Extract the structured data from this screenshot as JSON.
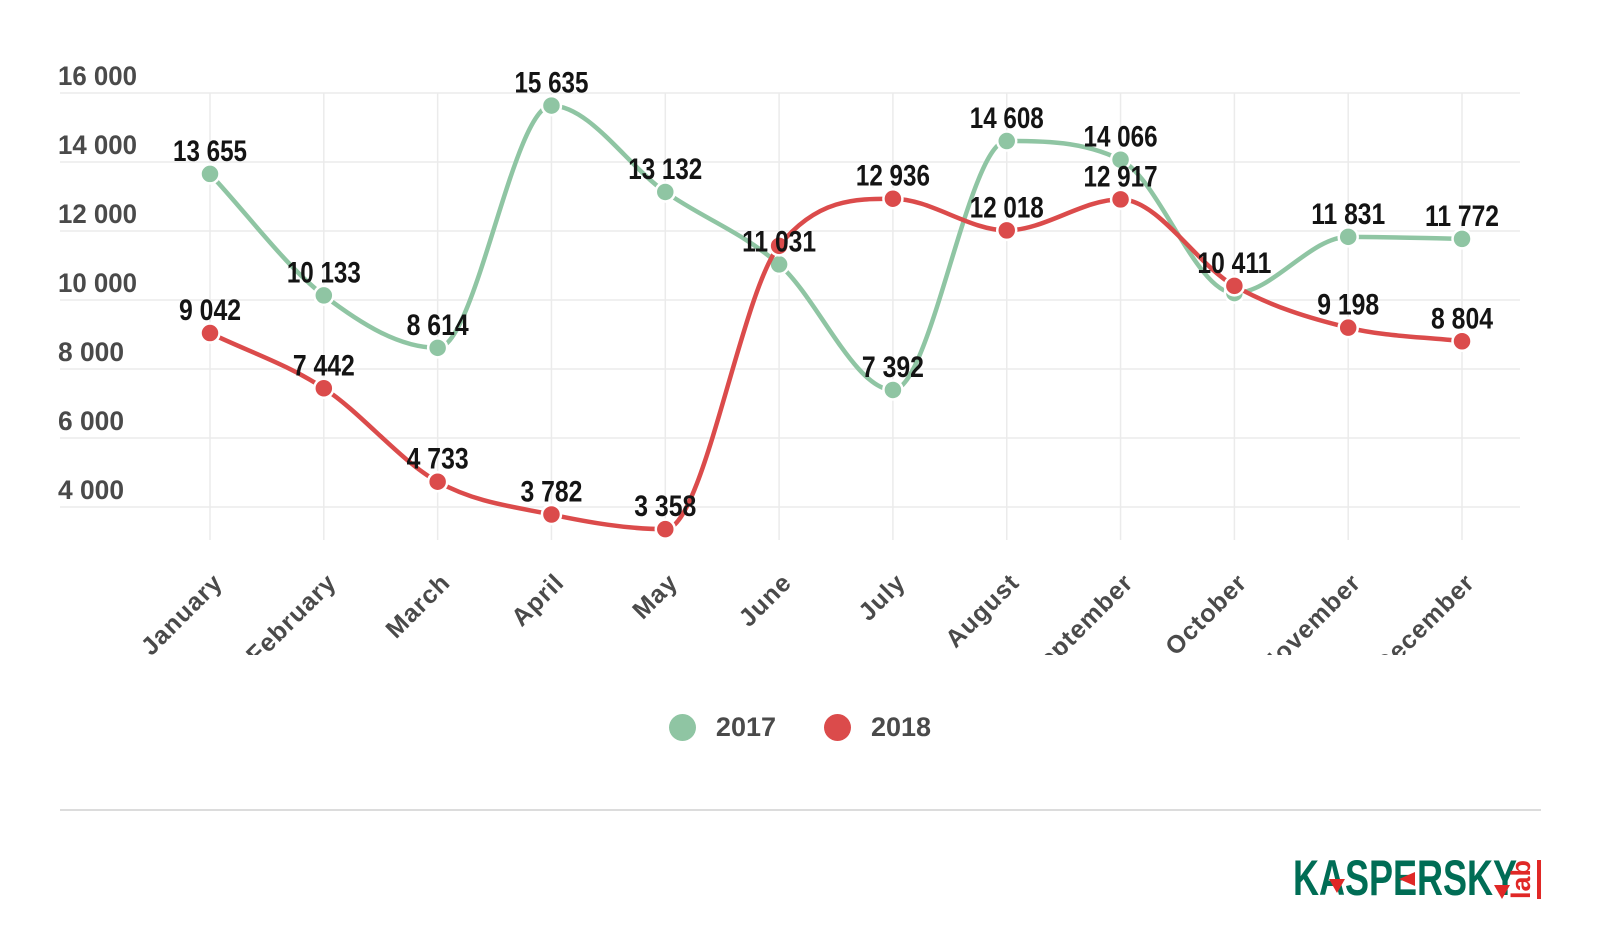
{
  "chart_data": {
    "type": "line",
    "categories": [
      "January",
      "February",
      "March",
      "April",
      "May",
      "June",
      "July",
      "August",
      "September",
      "October",
      "November",
      "December"
    ],
    "series": [
      {
        "name": "2017",
        "color": "#8FC5A3",
        "values": [
          13655,
          10133,
          8614,
          15635,
          13132,
          11031,
          7392,
          14608,
          14066,
          10200,
          11831,
          11772
        ],
        "labels": [
          "13 655",
          "10 133",
          "8 614",
          "15 635",
          "13 132",
          "11 031",
          "7 392",
          "14 608",
          "14 066",
          "",
          "11 831",
          "11 772"
        ]
      },
      {
        "name": "2018",
        "color": "#DB4B4B",
        "values": [
          9042,
          7442,
          4733,
          3782,
          3358,
          11570,
          12936,
          12018,
          12917,
          10411,
          9198,
          8804
        ],
        "labels": [
          "9 042",
          "7 442",
          "4 733",
          "3 782",
          "3 358",
          "",
          "12 936",
          "12 018",
          "12 917",
          "10 411",
          "9 198",
          "8 804"
        ]
      }
    ],
    "y_axis": {
      "tick_labels": [
        "16 000",
        "14 000",
        "12 000",
        "10 000",
        "8 000",
        "6 000",
        "4 000"
      ],
      "tick_values": [
        16000,
        14000,
        12000,
        10000,
        8000,
        6000,
        4000
      ]
    },
    "ylim": [
      4000,
      16000
    ],
    "grid": true,
    "legend_position": "bottom-center"
  },
  "legend": {
    "items": [
      {
        "label": "2017",
        "color": "#8FC5A3"
      },
      {
        "label": "2018",
        "color": "#DB4B4B"
      }
    ]
  },
  "branding": {
    "wordmark": "KASPERSKY",
    "sub": "lab",
    "green": "#006D55",
    "red": "#E02826"
  },
  "colors": {
    "grid": "#ebebeb",
    "axis_text": "#4a4a4a",
    "data_label_text": "#141414",
    "divider": "#dcdcdc",
    "background": "#ffffff"
  }
}
